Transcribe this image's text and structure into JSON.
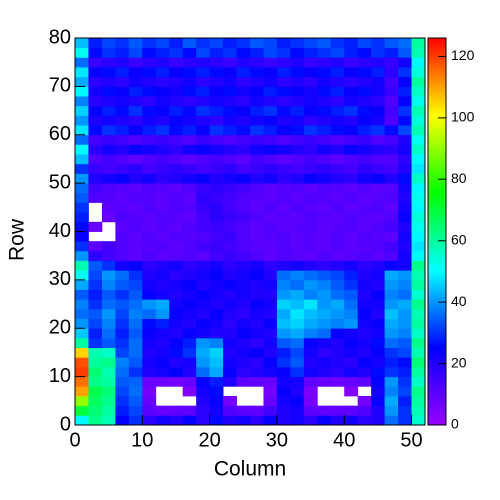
{
  "chart_data": {
    "type": "heatmap",
    "x_label": "Column",
    "y_label": "Row",
    "xlim": [
      0,
      52
    ],
    "ylim": [
      0,
      80
    ],
    "xticks": [
      0,
      10,
      20,
      30,
      40,
      50
    ],
    "yticks": [
      0,
      10,
      20,
      30,
      40,
      50,
      60,
      70,
      80
    ],
    "zlim": [
      0,
      126
    ],
    "zticks": [
      0,
      20,
      40,
      60,
      80,
      100,
      120
    ],
    "colorscale": [
      "#9900ff",
      "#0000ff",
      "#00ffff",
      "#00ff00",
      "#ffff00",
      "#ff0000"
    ],
    "xbins": [
      0,
      2,
      4,
      6,
      8,
      10,
      12,
      14,
      16,
      18,
      20,
      22,
      24,
      26,
      28,
      30,
      32,
      34,
      36,
      38,
      40,
      42,
      44,
      46,
      48,
      50,
      52
    ],
    "ybins": [
      0,
      2,
      4,
      6,
      8,
      10,
      12,
      14,
      16,
      18,
      20,
      22,
      24,
      26,
      28,
      30,
      32,
      34,
      36,
      38,
      40,
      42,
      44,
      46,
      48,
      50,
      52,
      54,
      56,
      58,
      60,
      62,
      64,
      66,
      68,
      70,
      72,
      74,
      76,
      78,
      80
    ],
    "z": [
      [
        50,
        62,
        58,
        25,
        30,
        18,
        22,
        20,
        24,
        18,
        26,
        20,
        22,
        18,
        24,
        20,
        22,
        18,
        24,
        20,
        22,
        18,
        20,
        36,
        30,
        55
      ],
      [
        70,
        64,
        60,
        28,
        32,
        10,
        8,
        9,
        10,
        18,
        22,
        12,
        10,
        9,
        14,
        20,
        22,
        10,
        9,
        9,
        10,
        12,
        20,
        40,
        30,
        58
      ],
      [
        90,
        66,
        62,
        30,
        34,
        8,
        null,
        null,
        null,
        20,
        24,
        6,
        null,
        null,
        8,
        22,
        24,
        6,
        null,
        null,
        null,
        6,
        24,
        42,
        28,
        60
      ],
      [
        110,
        68,
        64,
        32,
        36,
        6,
        null,
        null,
        4,
        22,
        26,
        null,
        null,
        null,
        6,
        24,
        20,
        5,
        null,
        null,
        4,
        null,
        22,
        38,
        32,
        62
      ],
      [
        115,
        62,
        60,
        34,
        35,
        8,
        7,
        6,
        8,
        24,
        28,
        20,
        10,
        9,
        8,
        22,
        22,
        9,
        8,
        7,
        8,
        10,
        24,
        40,
        30,
        56
      ],
      [
        120,
        64,
        58,
        36,
        30,
        20,
        22,
        25,
        20,
        36,
        42,
        24,
        18,
        20,
        22,
        24,
        30,
        22,
        20,
        18,
        22,
        20,
        26,
        30,
        28,
        60
      ],
      [
        118,
        60,
        62,
        38,
        34,
        22,
        24,
        20,
        22,
        40,
        44,
        22,
        20,
        18,
        24,
        30,
        34,
        20,
        22,
        20,
        18,
        24,
        22,
        28,
        26,
        64
      ],
      [
        105,
        58,
        56,
        32,
        36,
        20,
        22,
        26,
        30,
        42,
        46,
        20,
        22,
        24,
        20,
        28,
        32,
        22,
        18,
        20,
        22,
        20,
        24,
        30,
        32,
        58
      ],
      [
        60,
        30,
        34,
        30,
        36,
        22,
        20,
        24,
        28,
        40,
        38,
        22,
        20,
        18,
        22,
        34,
        36,
        24,
        22,
        20,
        24,
        22,
        26,
        36,
        34,
        62
      ],
      [
        45,
        28,
        36,
        28,
        34,
        24,
        22,
        20,
        24,
        22,
        20,
        20,
        24,
        22,
        20,
        40,
        42,
        38,
        36,
        24,
        22,
        20,
        22,
        40,
        38,
        56
      ],
      [
        40,
        32,
        38,
        30,
        36,
        26,
        28,
        22,
        20,
        24,
        22,
        18,
        22,
        20,
        24,
        44,
        46,
        42,
        40,
        38,
        40,
        22,
        24,
        42,
        40,
        60
      ],
      [
        36,
        34,
        40,
        32,
        38,
        36,
        40,
        24,
        22,
        20,
        24,
        20,
        18,
        22,
        20,
        42,
        48,
        44,
        42,
        40,
        38,
        24,
        20,
        44,
        40,
        58
      ],
      [
        38,
        30,
        36,
        34,
        36,
        40,
        42,
        22,
        24,
        22,
        20,
        22,
        20,
        24,
        22,
        46,
        44,
        48,
        40,
        42,
        36,
        22,
        22,
        40,
        42,
        62
      ],
      [
        34,
        28,
        34,
        30,
        34,
        24,
        22,
        20,
        22,
        24,
        22,
        20,
        22,
        20,
        20,
        40,
        42,
        38,
        40,
        36,
        34,
        20,
        24,
        38,
        36,
        55
      ],
      [
        42,
        30,
        38,
        34,
        32,
        22,
        20,
        22,
        24,
        20,
        22,
        24,
        22,
        20,
        22,
        38,
        36,
        40,
        38,
        34,
        30,
        22,
        20,
        40,
        38,
        60
      ],
      [
        52,
        32,
        40,
        36,
        30,
        20,
        22,
        18,
        20,
        22,
        24,
        20,
        22,
        24,
        20,
        36,
        38,
        36,
        34,
        32,
        28,
        20,
        22,
        42,
        40,
        58
      ],
      [
        58,
        34,
        30,
        22,
        24,
        18,
        20,
        22,
        18,
        20,
        22,
        18,
        20,
        22,
        18,
        20,
        22,
        20,
        18,
        20,
        22,
        18,
        20,
        24,
        22,
        62
      ],
      [
        40,
        18,
        14,
        12,
        10,
        12,
        10,
        11,
        12,
        10,
        14,
        16,
        14,
        12,
        10,
        12,
        11,
        10,
        12,
        10,
        11,
        12,
        10,
        12,
        22,
        50
      ],
      [
        30,
        10,
        14,
        12,
        10,
        11,
        12,
        10,
        12,
        14,
        16,
        14,
        12,
        11,
        10,
        12,
        10,
        11,
        10,
        12,
        10,
        11,
        12,
        14,
        20,
        48
      ],
      [
        24,
        null,
        null,
        12,
        10,
        12,
        10,
        12,
        11,
        12,
        14,
        16,
        12,
        10,
        11,
        12,
        10,
        11,
        10,
        12,
        10,
        12,
        11,
        10,
        22,
        50
      ],
      [
        26,
        8,
        null,
        10,
        12,
        10,
        11,
        10,
        12,
        14,
        16,
        14,
        12,
        10,
        12,
        10,
        11,
        12,
        10,
        11,
        12,
        10,
        12,
        14,
        20,
        52
      ],
      [
        28,
        null,
        8,
        12,
        11,
        10,
        12,
        11,
        10,
        14,
        18,
        16,
        14,
        12,
        10,
        11,
        10,
        12,
        11,
        10,
        12,
        11,
        10,
        12,
        24,
        54
      ],
      [
        30,
        null,
        10,
        11,
        10,
        12,
        10,
        12,
        11,
        16,
        18,
        14,
        12,
        10,
        12,
        10,
        12,
        11,
        10,
        12,
        10,
        11,
        12,
        10,
        22,
        50
      ],
      [
        34,
        12,
        11,
        10,
        12,
        11,
        10,
        12,
        10,
        18,
        16,
        14,
        12,
        11,
        10,
        12,
        10,
        12,
        11,
        10,
        12,
        10,
        11,
        12,
        20,
        52
      ],
      [
        36,
        14,
        12,
        11,
        10,
        12,
        11,
        10,
        12,
        16,
        18,
        16,
        14,
        12,
        10,
        11,
        12,
        10,
        12,
        11,
        10,
        12,
        10,
        11,
        22,
        50
      ],
      [
        40,
        20,
        22,
        24,
        20,
        22,
        18,
        20,
        22,
        24,
        20,
        22,
        24,
        20,
        22,
        18,
        20,
        24,
        22,
        20,
        18,
        22,
        24,
        20,
        26,
        56
      ],
      [
        30,
        16,
        14,
        16,
        18,
        14,
        16,
        18,
        16,
        14,
        16,
        18,
        14,
        16,
        18,
        16,
        14,
        16,
        18,
        16,
        14,
        18,
        16,
        14,
        20,
        48
      ],
      [
        44,
        12,
        14,
        12,
        10,
        12,
        14,
        12,
        10,
        12,
        14,
        12,
        10,
        14,
        12,
        10,
        12,
        14,
        12,
        10,
        12,
        14,
        12,
        12,
        18,
        50
      ],
      [
        50,
        18,
        22,
        20,
        24,
        22,
        20,
        18,
        22,
        24,
        22,
        20,
        18,
        22,
        24,
        22,
        20,
        18,
        22,
        20,
        24,
        22,
        20,
        18,
        22,
        56
      ],
      [
        36,
        14,
        16,
        14,
        12,
        14,
        16,
        14,
        12,
        16,
        14,
        12,
        14,
        16,
        14,
        12,
        14,
        16,
        14,
        12,
        14,
        16,
        12,
        14,
        20,
        52
      ],
      [
        48,
        26,
        30,
        28,
        24,
        28,
        30,
        26,
        28,
        24,
        30,
        28,
        26,
        30,
        28,
        24,
        26,
        30,
        28,
        26,
        24,
        28,
        30,
        26,
        32,
        58
      ],
      [
        40,
        20,
        22,
        20,
        18,
        22,
        20,
        24,
        22,
        20,
        18,
        22,
        20,
        22,
        24,
        20,
        22,
        18,
        20,
        22,
        20,
        24,
        22,
        12,
        26,
        54
      ],
      [
        46,
        24,
        28,
        26,
        30,
        26,
        24,
        28,
        26,
        30,
        28,
        26,
        24,
        28,
        30,
        26,
        28,
        24,
        26,
        28,
        30,
        26,
        24,
        14,
        30,
        58
      ],
      [
        38,
        18,
        20,
        22,
        20,
        18,
        22,
        20,
        18,
        20,
        22,
        20,
        18,
        22,
        20,
        18,
        20,
        22,
        20,
        18,
        22,
        20,
        18,
        12,
        24,
        52
      ],
      [
        50,
        22,
        26,
        24,
        28,
        26,
        24,
        22,
        26,
        28,
        24,
        26,
        22,
        24,
        28,
        26,
        24,
        22,
        26,
        28,
        24,
        26,
        22,
        16,
        28,
        56
      ],
      [
        42,
        18,
        20,
        18,
        22,
        20,
        18,
        20,
        22,
        18,
        20,
        22,
        18,
        20,
        22,
        18,
        20,
        18,
        22,
        20,
        18,
        20,
        22,
        14,
        24,
        60
      ],
      [
        48,
        24,
        26,
        28,
        24,
        26,
        28,
        24,
        26,
        28,
        26,
        24,
        28,
        26,
        24,
        28,
        26,
        24,
        26,
        28,
        24,
        26,
        28,
        18,
        30,
        54
      ],
      [
        36,
        16,
        18,
        20,
        16,
        18,
        20,
        16,
        18,
        20,
        18,
        16,
        20,
        18,
        16,
        18,
        20,
        16,
        18,
        20,
        16,
        18,
        20,
        16,
        22,
        50
      ],
      [
        52,
        26,
        30,
        28,
        32,
        26,
        28,
        30,
        26,
        32,
        28,
        30,
        26,
        28,
        32,
        30,
        26,
        28,
        30,
        32,
        28,
        26,
        30,
        28,
        34,
        58
      ],
      [
        44,
        28,
        32,
        30,
        34,
        30,
        32,
        28,
        34,
        30,
        32,
        28,
        30,
        34,
        32,
        28,
        30,
        32,
        34,
        30,
        28,
        32,
        30,
        34,
        36,
        60
      ]
    ]
  }
}
